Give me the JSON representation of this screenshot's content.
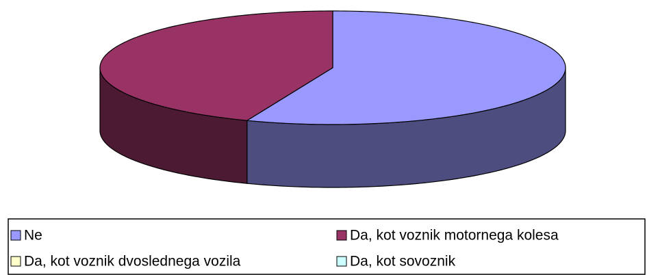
{
  "chart_data": {
    "type": "pie",
    "categories": [
      "Ne",
      "Da, kot voznik motornega kolesa",
      "Da, kot voznik dvoslednega vozila",
      "Da, kot sovoznik"
    ],
    "values": [
      56,
      44,
      0,
      0
    ],
    "colors": [
      "#9999ff",
      "#993366",
      "#ffffcc",
      "#ccffff"
    ],
    "legend": "bottom"
  }
}
